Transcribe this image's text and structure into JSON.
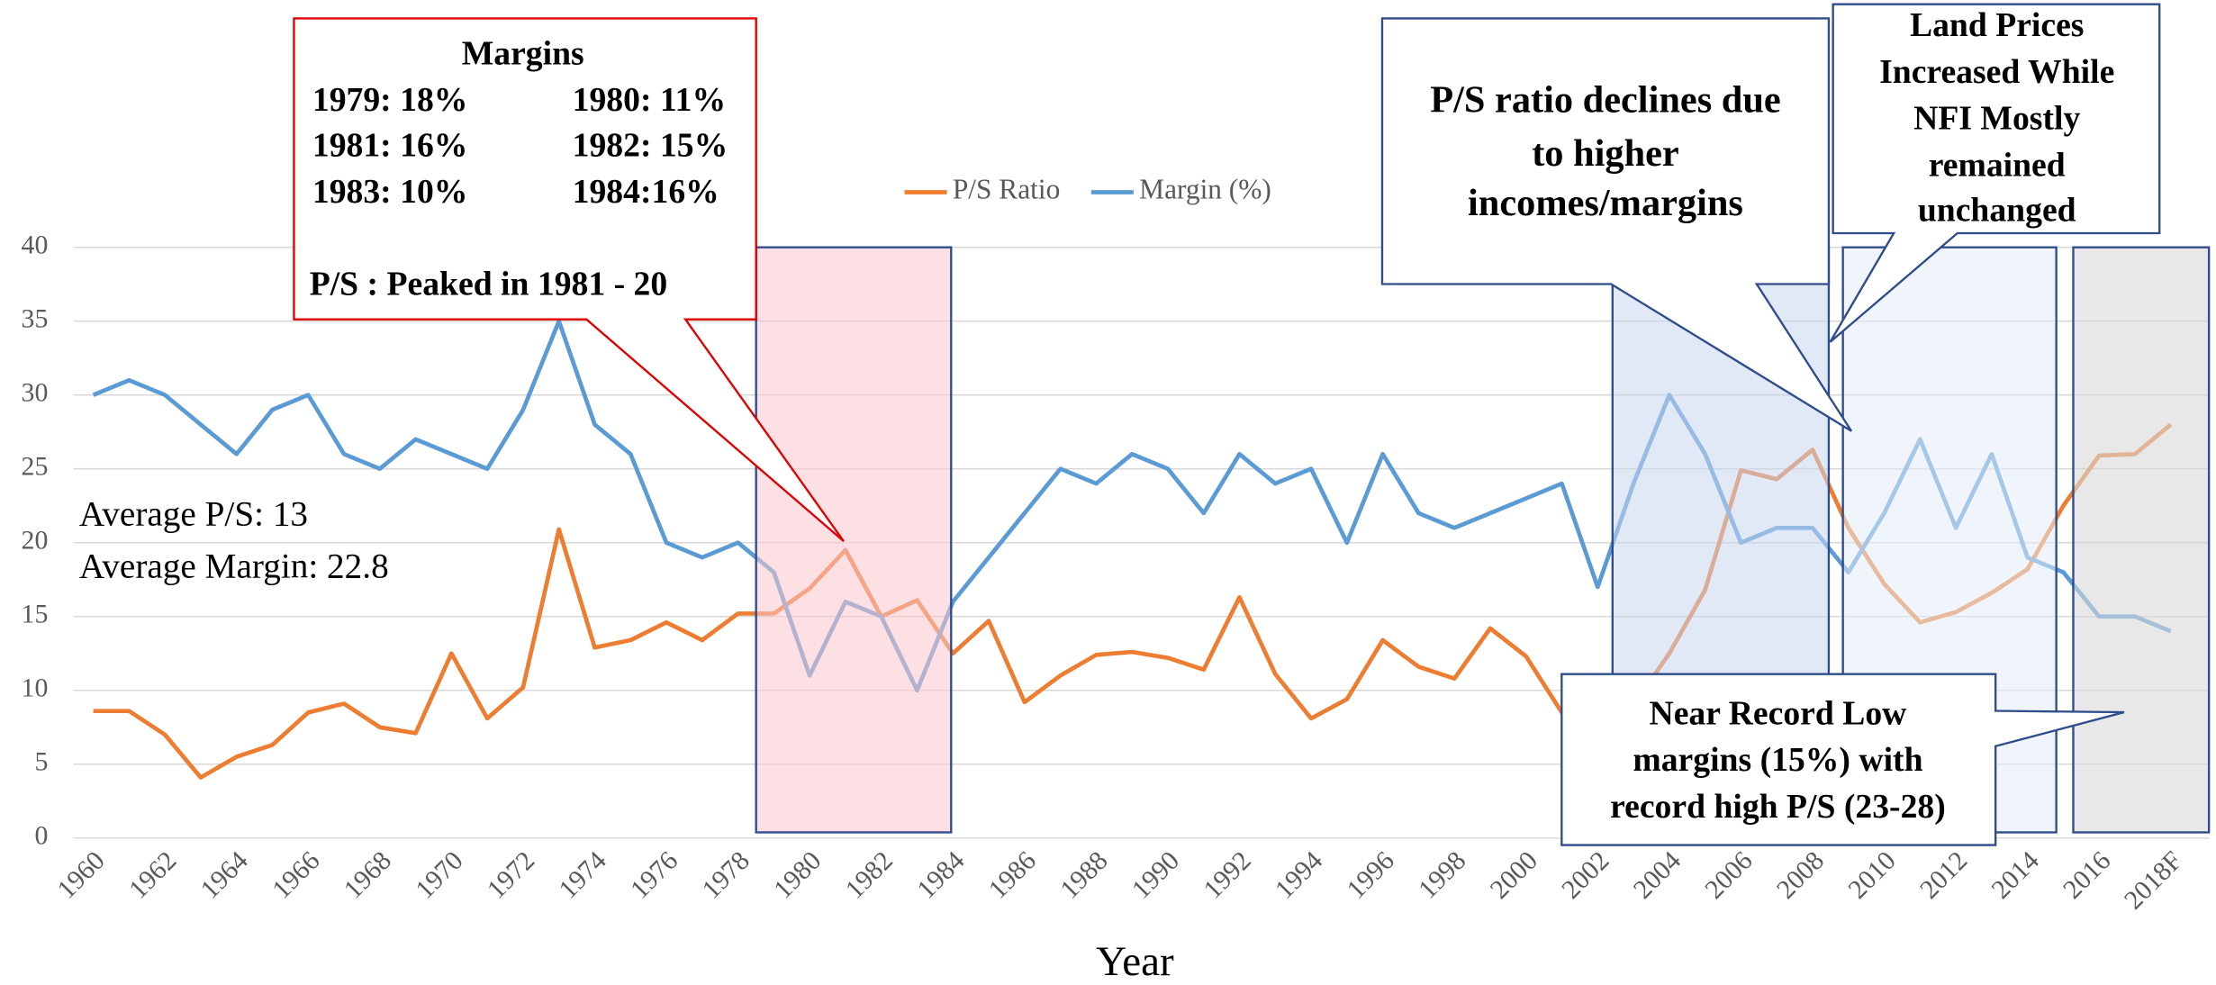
{
  "chart_data": {
    "type": "line",
    "x_label": "Year",
    "categories": [
      "1960",
      null,
      "1962",
      null,
      "1964",
      null,
      "1966",
      null,
      "1968",
      null,
      "1970",
      null,
      "1972",
      null,
      "1974",
      null,
      "1976",
      null,
      "1978",
      null,
      "1980",
      null,
      "1982",
      null,
      "1984",
      null,
      "1986",
      null,
      "1988",
      null,
      "1990",
      null,
      "1992",
      null,
      "1994",
      null,
      "1996",
      null,
      "1998",
      null,
      "2000",
      null,
      "2002",
      null,
      "2004",
      null,
      "2006",
      null,
      "2008",
      null,
      "2010",
      null,
      "2012",
      null,
      "2014",
      null,
      "2016",
      null,
      "2018F"
    ],
    "series": [
      {
        "name": "P/S Ratio",
        "color": "#ED7D31",
        "values": [
          8.6,
          8.6,
          7,
          4.1,
          5.5,
          6.3,
          8.5,
          9.1,
          7.5,
          7.1,
          12.5,
          8.1,
          10.2,
          20.9,
          12.9,
          13.4,
          14.6,
          13.4,
          15.2,
          15.2,
          16.9,
          19.5,
          15,
          16.1,
          12.5,
          14.7,
          9.2,
          11,
          12.4,
          12.6,
          12.2,
          11.4,
          16.3,
          11.1,
          8.1,
          9.4,
          13.4,
          11.6,
          10.8,
          14.2,
          12.3,
          8.5,
          8,
          9,
          12.5,
          16.8,
          24.9,
          24.3,
          26.3,
          21,
          17.2,
          14.6,
          15.3,
          16.6,
          18.2,
          22.5,
          25.9,
          26,
          28
        ]
      },
      {
        "name": "Margin (%)",
        "color": "#5B9BD5",
        "values": [
          30,
          31,
          30,
          28,
          26,
          29,
          30,
          26,
          25,
          27,
          26,
          25,
          29,
          35,
          28,
          26,
          20,
          19,
          20,
          18,
          11,
          16,
          15,
          10,
          16,
          19,
          22,
          25,
          24,
          26,
          25,
          22,
          26,
          24,
          25,
          20,
          26,
          22,
          21,
          22,
          23,
          24,
          17,
          24,
          30,
          26,
          20,
          21,
          21,
          18,
          22,
          27,
          21,
          26,
          19,
          18,
          15,
          15,
          14
        ]
      }
    ],
    "ylim": [
      0,
      40
    ],
    "yticks": [
      0,
      5,
      10,
      15,
      20,
      25,
      30,
      35,
      40
    ],
    "grid": true,
    "legend": "top",
    "annotations": {
      "averages": [
        "Average P/S: 13",
        "Average Margin: 22.8"
      ],
      "margins_box": [
        "Margins",
        "1979: 18%",
        "1980: 11%",
        "1981: 16%",
        "1982: 15%",
        "1983: 10%",
        "1984:16%",
        "P/S : Peaked in 1981 - 20"
      ],
      "ps_box": [
        "P/S ratio declines due",
        "to higher",
        "incomes/margins"
      ],
      "land_box": [
        "Land Prices",
        "Increased While",
        "NFI Mostly",
        "remained",
        "unchanged"
      ],
      "record_box": [
        "Near Record Low",
        "margins (15%) with",
        "record high P/S (23-28)"
      ]
    }
  }
}
